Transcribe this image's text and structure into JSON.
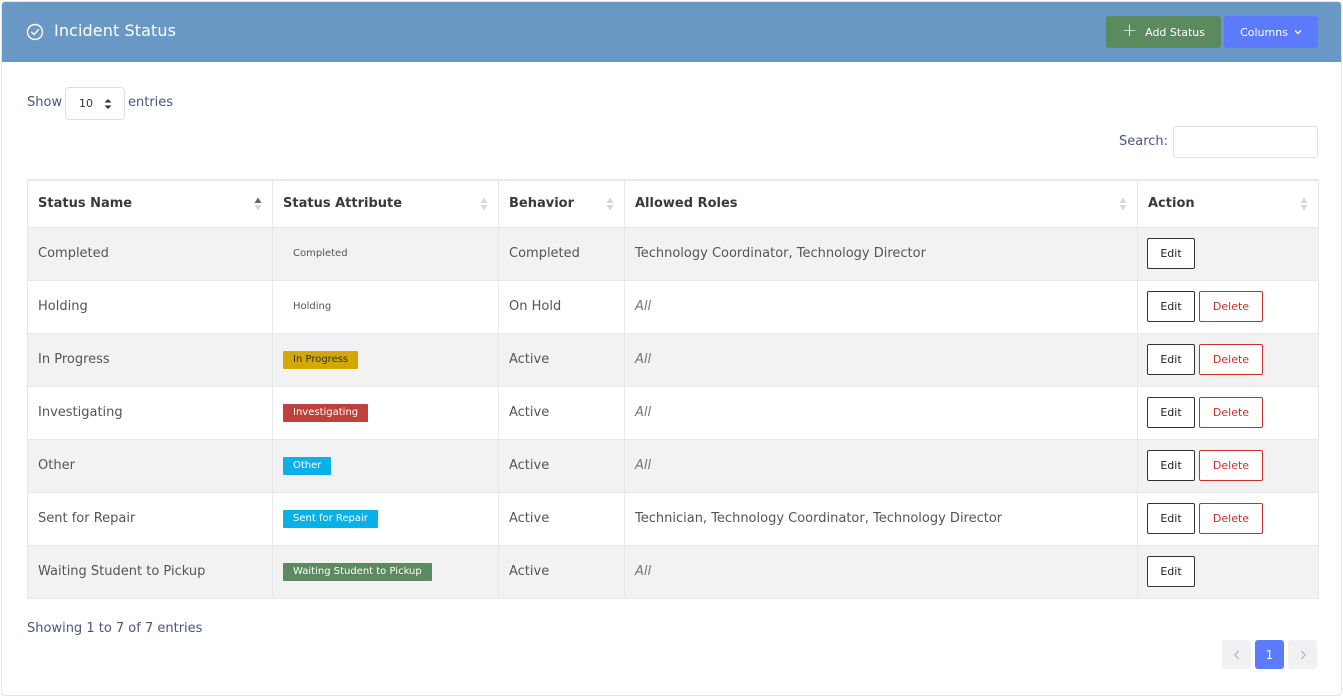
{
  "header": {
    "title": "Incident Status",
    "add_label": "Add Status",
    "columns_label": "Columns"
  },
  "length": {
    "show": "Show",
    "value": "10",
    "entries": "entries"
  },
  "search": {
    "label": "Search:",
    "value": ""
  },
  "table": {
    "columns": [
      "Status Name",
      "Status Attribute",
      "Behavior",
      "Allowed Roles",
      "Action"
    ],
    "rows": [
      {
        "name": "Completed",
        "attr": "Completed",
        "attr_bg": "",
        "attr_fg": "#555555",
        "behavior": "Completed",
        "roles": "Technology Coordinator, Technology Director",
        "roles_italic": false,
        "edit": "Edit",
        "delete": ""
      },
      {
        "name": "Holding",
        "attr": "Holding",
        "attr_bg": "",
        "attr_fg": "#555555",
        "behavior": "On Hold",
        "roles": "All",
        "roles_italic": true,
        "edit": "Edit",
        "delete": "Delete"
      },
      {
        "name": "In Progress",
        "attr": "In Progress",
        "attr_bg": "#d4a800",
        "attr_fg": "#333333",
        "behavior": "Active",
        "roles": "All",
        "roles_italic": true,
        "edit": "Edit",
        "delete": "Delete"
      },
      {
        "name": "Investigating",
        "attr": "Investigating",
        "attr_bg": "#c0413b",
        "attr_fg": "#ffffff",
        "behavior": "Active",
        "roles": "All",
        "roles_italic": true,
        "edit": "Edit",
        "delete": "Delete"
      },
      {
        "name": "Other",
        "attr": "Other",
        "attr_bg": "#0ab0e8",
        "attr_fg": "#ffffff",
        "behavior": "Active",
        "roles": "All",
        "roles_italic": true,
        "edit": "Edit",
        "delete": "Delete"
      },
      {
        "name": "Sent for Repair",
        "attr": "Sent for Repair",
        "attr_bg": "#0ab0e8",
        "attr_fg": "#ffffff",
        "behavior": "Active",
        "roles": "Technician, Technology Coordinator, Technology Director",
        "roles_italic": false,
        "edit": "Edit",
        "delete": "Delete"
      },
      {
        "name": "Waiting Student to Pickup",
        "attr": "Waiting Student to Pickup",
        "attr_bg": "#5a8a5e",
        "attr_fg": "#ffffff",
        "behavior": "Active",
        "roles": "All",
        "roles_italic": true,
        "edit": "Edit",
        "delete": ""
      }
    ]
  },
  "footer": {
    "info": "Showing 1 to 7 of 7 entries",
    "current_page": "1"
  },
  "colors": {
    "header_bg": "#6a98c4",
    "add_btn": "#5a8a5e",
    "primary": "#5b7bfa"
  }
}
